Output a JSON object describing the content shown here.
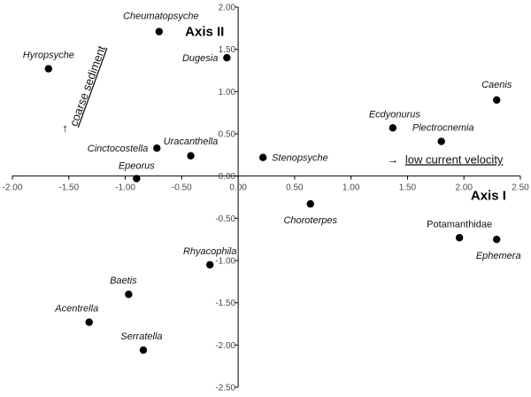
{
  "chart_data": {
    "type": "scatter",
    "xlim": [
      -2.0,
      2.5
    ],
    "ylim": [
      -2.5,
      2.0
    ],
    "x_ticks": [
      "-2.00",
      "-1.50",
      "-1.00",
      "-0.50",
      "0.00",
      "0.50",
      "1.00",
      "1.50",
      "2.00",
      "2.50"
    ],
    "y_ticks": [
      "2.00",
      "1.50",
      "1.00",
      "0.50",
      "0.00",
      "-0.50",
      "-1.00",
      "-1.50",
      "-2.00",
      "-2.50"
    ],
    "axis_titles": {
      "x": "Axis I",
      "y": "Axis II"
    },
    "annotations": {
      "x_direction": "low current velocity",
      "x_arrow": "→",
      "y_direction": "coarse sediment",
      "y_arrow": "↑"
    },
    "grid": false,
    "marker_color": "#000000",
    "points": [
      {
        "label": "Cheumatopsyche",
        "x": -0.7,
        "y": 1.71,
        "italic": true
      },
      {
        "label": "Hyropsyche",
        "x": -1.68,
        "y": 1.27,
        "italic": true
      },
      {
        "label": "Dugesia",
        "x": -0.1,
        "y": 1.4,
        "italic": true
      },
      {
        "label": "Caenis",
        "x": 2.29,
        "y": 0.9,
        "italic": true
      },
      {
        "label": "Ecdyonurus",
        "x": 1.37,
        "y": 0.57,
        "italic": true
      },
      {
        "label": "Plectrocnemia",
        "x": 1.8,
        "y": 0.41,
        "italic": true
      },
      {
        "label": "Cinctocostella",
        "x": -0.72,
        "y": 0.33,
        "italic": true
      },
      {
        "label": "Uracanthella",
        "x": -0.42,
        "y": 0.24,
        "italic": true
      },
      {
        "label": "Stenopsyche",
        "x": 0.22,
        "y": 0.22,
        "italic": true
      },
      {
        "label": "Epeorus",
        "x": -0.9,
        "y": -0.03,
        "italic": true
      },
      {
        "label": "Choroterpes",
        "x": 0.64,
        "y": -0.33,
        "italic": true
      },
      {
        "label": "Potamanthidae",
        "x": 1.96,
        "y": -0.73,
        "italic": false
      },
      {
        "label": "Ephemera",
        "x": 2.29,
        "y": -0.75,
        "italic": true
      },
      {
        "label": "Rhyacophila",
        "x": -0.25,
        "y": -1.05,
        "italic": true
      },
      {
        "label": "Baetis",
        "x": -0.97,
        "y": -1.4,
        "italic": true
      },
      {
        "label": "Acentrella",
        "x": -1.32,
        "y": -1.73,
        "italic": true
      },
      {
        "label": "Serratella",
        "x": -0.84,
        "y": -2.06,
        "italic": true
      }
    ]
  }
}
